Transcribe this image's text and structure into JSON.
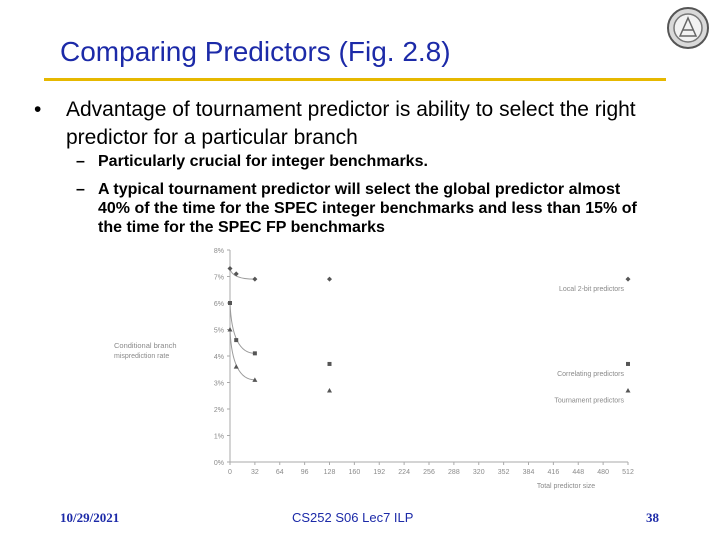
{
  "slide": {
    "title": "Comparing Predictors (Fig. 2.8)",
    "bullet_marker": "•",
    "bullet_text": "Advantage of tournament predictor is ability to select the right predictor for a particular branch",
    "sub_marker": "–",
    "sub_points": [
      "Particularly crucial for integer benchmarks.",
      "A typical tournament predictor will select the global predictor almost 40% of the time for the SPEC integer benchmarks and less than 15% of the time for the SPEC FP benchmarks"
    ],
    "accent_color": "#e6b800",
    "title_color": "#1c2aa8"
  },
  "footer": {
    "date": "10/29/2021",
    "course": "CS252 S06 Lec7 ILP",
    "page": "38"
  },
  "logo": {
    "icon": "university-seal-icon"
  },
  "chart_data": {
    "type": "line",
    "xlabel": "Total predictor size",
    "ylabel": "Conditional branch misprediction rate",
    "x_ticks": [
      0,
      32,
      64,
      96,
      128,
      160,
      192,
      224,
      256,
      288,
      320,
      352,
      384,
      416,
      448,
      480,
      512
    ],
    "y_ticks": [
      "0%",
      "1%",
      "2%",
      "3%",
      "4%",
      "5%",
      "6%",
      "7%",
      "8%"
    ],
    "xlim": [
      0,
      512
    ],
    "ylim": [
      0,
      8
    ],
    "grid": false,
    "series": [
      {
        "name": "Local 2-bit predictors",
        "x": [
          0,
          8,
          32,
          128,
          512
        ],
        "y": [
          7.3,
          7.1,
          6.9,
          6.9,
          6.9
        ]
      },
      {
        "name": "Correlating predictors",
        "x": [
          0,
          8,
          32,
          128,
          512
        ],
        "y": [
          6.0,
          4.6,
          4.1,
          3.7,
          3.7
        ]
      },
      {
        "name": "Tournament predictors",
        "x": [
          0,
          8,
          32,
          128,
          512
        ],
        "y": [
          5.0,
          3.6,
          3.1,
          2.7,
          2.7
        ]
      }
    ]
  }
}
